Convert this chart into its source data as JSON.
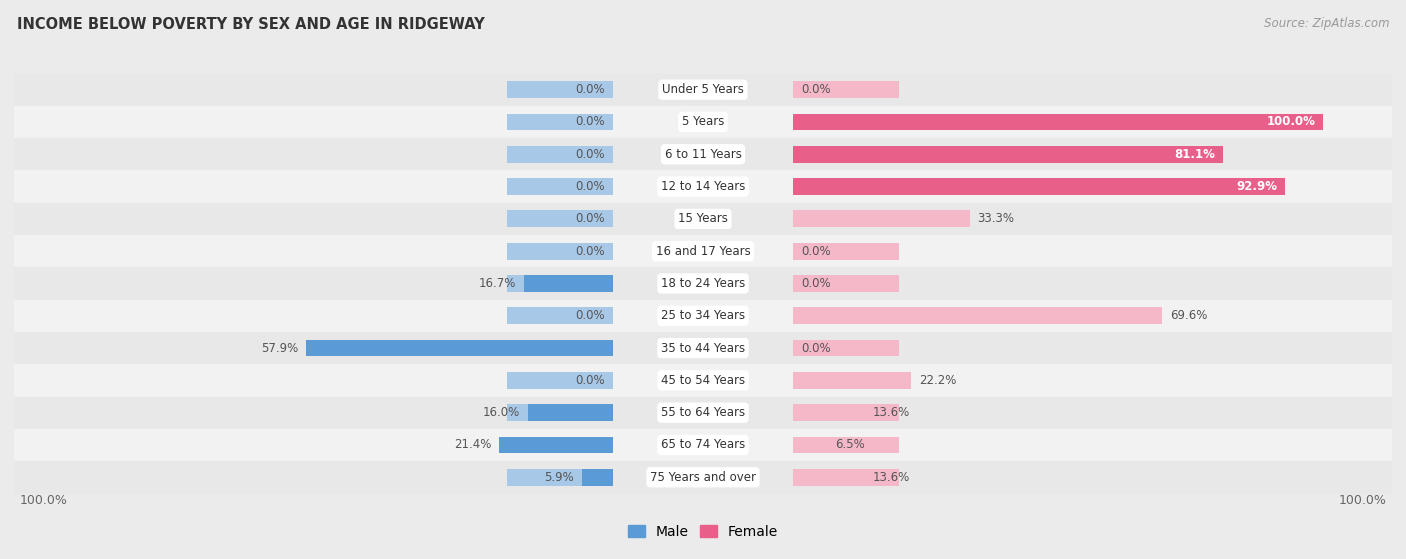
{
  "title": "INCOME BELOW POVERTY BY SEX AND AGE IN RIDGEWAY",
  "source": "Source: ZipAtlas.com",
  "categories": [
    "Under 5 Years",
    "5 Years",
    "6 to 11 Years",
    "12 to 14 Years",
    "15 Years",
    "16 and 17 Years",
    "18 to 24 Years",
    "25 to 34 Years",
    "35 to 44 Years",
    "45 to 54 Years",
    "55 to 64 Years",
    "65 to 74 Years",
    "75 Years and over"
  ],
  "male": [
    0.0,
    0.0,
    0.0,
    0.0,
    0.0,
    0.0,
    16.7,
    0.0,
    57.9,
    0.0,
    16.0,
    21.4,
    5.9
  ],
  "female": [
    0.0,
    100.0,
    81.1,
    92.9,
    33.3,
    0.0,
    0.0,
    69.6,
    0.0,
    22.2,
    13.6,
    6.5,
    13.6
  ],
  "male_color_light": "#a8c8e8",
  "male_color_dark": "#5b9bd5",
  "female_color_light": "#f5b8c8",
  "female_color_dark": "#e8608a",
  "row_colors": [
    "#e8e8e8",
    "#f2f2f2"
  ],
  "bg_color": "#ebebeb",
  "bar_height": 0.52,
  "max_val": 100.0
}
